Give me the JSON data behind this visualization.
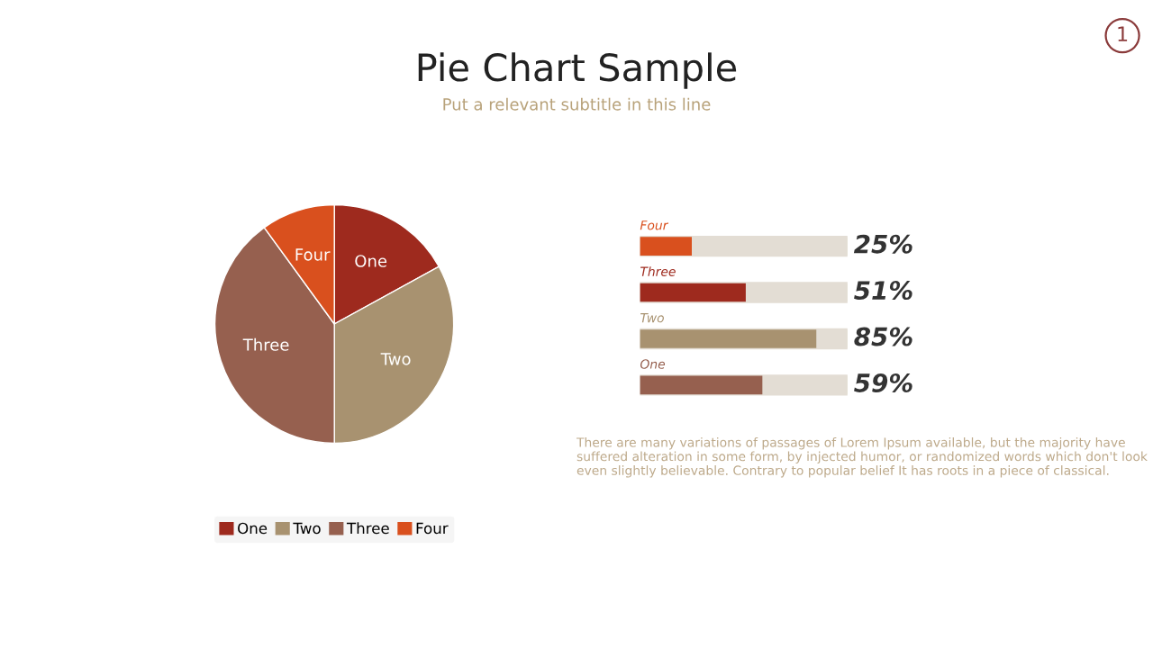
{
  "chart_data": [
    {
      "type": "pie",
      "title": "Pie Chart Sample",
      "subtitle": "Put a relevant subtitle in this line",
      "categories": [
        "One",
        "Two",
        "Three",
        "Four"
      ],
      "values": [
        17,
        33,
        40,
        10
      ],
      "colors": [
        "#9e2a1e",
        "#a89270",
        "#96604f",
        "#d9501e"
      ],
      "legend": "bottom",
      "annotations": [
        "1"
      ]
    },
    {
      "type": "bar",
      "orientation": "horizontal",
      "categories": [
        "Four",
        "Three",
        "Two",
        "One"
      ],
      "values": [
        25,
        51,
        85,
        59
      ],
      "colors": [
        "#d9501e",
        "#9e2a1e",
        "#a89270",
        "#96604f"
      ],
      "value_labels": [
        "25%",
        "51%",
        "85%",
        "59%"
      ],
      "xlim": [
        0,
        100
      ],
      "tick_labels": false,
      "annotations": [
        "There are many variations of passages of Lorem Ipsum available, but the majority have suffered alteration in some form, by injected humor, or randomized words which don't look even slightly believable. Contrary to popular belief It has roots in a piece of classical."
      ]
    }
  ]
}
